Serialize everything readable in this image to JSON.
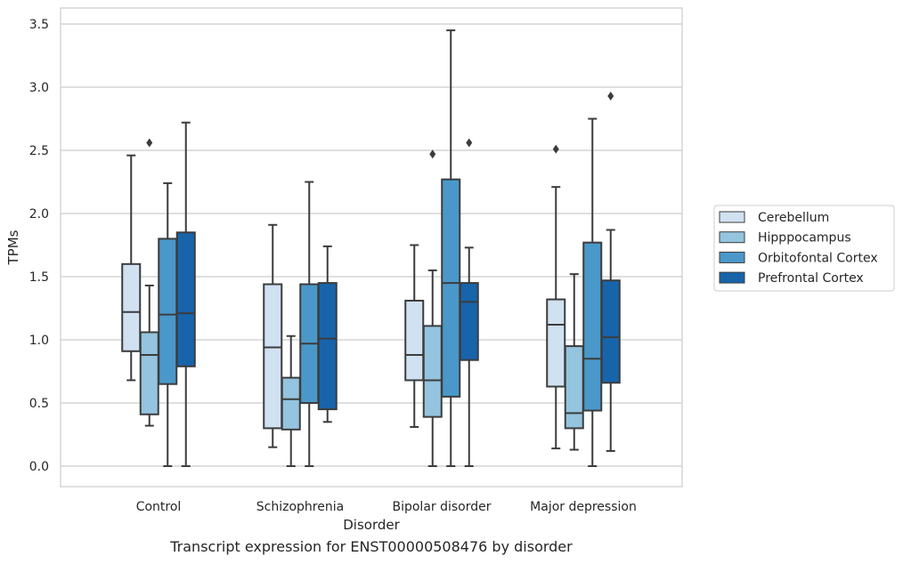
{
  "caption": "Transcript expression for ENST00000508476 by disorder",
  "chart_data": {
    "type": "box",
    "xlabel": "Disorder",
    "ylabel": "TPMs",
    "ylim": [
      -0.17,
      3.62
    ],
    "yticks": [
      0.0,
      0.5,
      1.0,
      1.5,
      2.0,
      2.5,
      3.0,
      3.5
    ],
    "ytick_labels": [
      "0.0",
      "0.5",
      "1.0",
      "1.5",
      "2.0",
      "2.5",
      "3.0",
      "3.5"
    ],
    "grid": "horizontal",
    "legend_position": "outside-right",
    "categories": [
      "Control",
      "Schizophrenia",
      "Bipolar disorder",
      "Major depression"
    ],
    "series": [
      {
        "name": "Cerebellum",
        "color": "#d0e1f2",
        "boxes": [
          {
            "whisker_low": 0.68,
            "q1": 0.91,
            "median": 1.22,
            "q3": 1.6,
            "whisker_high": 2.46,
            "outliers": []
          },
          {
            "whisker_low": 0.15,
            "q1": 0.3,
            "median": 0.94,
            "q3": 1.44,
            "whisker_high": 1.91,
            "outliers": []
          },
          {
            "whisker_low": 0.31,
            "q1": 0.68,
            "median": 0.88,
            "q3": 1.31,
            "whisker_high": 1.75,
            "outliers": []
          },
          {
            "whisker_low": 0.14,
            "q1": 0.63,
            "median": 1.12,
            "q3": 1.32,
            "whisker_high": 2.21,
            "outliers": [
              2.51
            ]
          }
        ]
      },
      {
        "name": "Hipppocampus",
        "color": "#94c4df",
        "boxes": [
          {
            "whisker_low": 0.32,
            "q1": 0.41,
            "median": 0.88,
            "q3": 1.06,
            "whisker_high": 1.43,
            "outliers": [
              2.56
            ]
          },
          {
            "whisker_low": 0.0,
            "q1": 0.29,
            "median": 0.53,
            "q3": 0.7,
            "whisker_high": 1.03,
            "outliers": []
          },
          {
            "whisker_low": 0.0,
            "q1": 0.39,
            "median": 0.68,
            "q3": 1.11,
            "whisker_high": 1.55,
            "outliers": [
              2.47
            ]
          },
          {
            "whisker_low": 0.13,
            "q1": 0.3,
            "median": 0.42,
            "q3": 0.95,
            "whisker_high": 1.52,
            "outliers": []
          }
        ]
      },
      {
        "name": "Orbitofontal Cortex",
        "color": "#4a98c9",
        "boxes": [
          {
            "whisker_low": 0.0,
            "q1": 0.65,
            "median": 1.2,
            "q3": 1.8,
            "whisker_high": 2.24,
            "outliers": []
          },
          {
            "whisker_low": 0.0,
            "q1": 0.5,
            "median": 0.97,
            "q3": 1.44,
            "whisker_high": 2.25,
            "outliers": []
          },
          {
            "whisker_low": 0.0,
            "q1": 0.55,
            "median": 1.45,
            "q3": 2.27,
            "whisker_high": 3.45,
            "outliers": []
          },
          {
            "whisker_low": 0.0,
            "q1": 0.44,
            "median": 0.85,
            "q3": 1.77,
            "whisker_high": 2.75,
            "outliers": []
          }
        ]
      },
      {
        "name": "Prefrontal Cortex",
        "color": "#1764ab",
        "boxes": [
          {
            "whisker_low": 0.0,
            "q1": 0.79,
            "median": 1.21,
            "q3": 1.85,
            "whisker_high": 2.72,
            "outliers": []
          },
          {
            "whisker_low": 0.35,
            "q1": 0.45,
            "median": 1.01,
            "q3": 1.45,
            "whisker_high": 1.74,
            "outliers": []
          },
          {
            "whisker_low": 0.0,
            "q1": 0.84,
            "median": 1.3,
            "q3": 1.45,
            "whisker_high": 1.73,
            "outliers": [
              2.56
            ]
          },
          {
            "whisker_low": 0.12,
            "q1": 0.66,
            "median": 1.02,
            "q3": 1.47,
            "whisker_high": 1.87,
            "outliers": [
              2.93
            ]
          }
        ]
      }
    ]
  }
}
